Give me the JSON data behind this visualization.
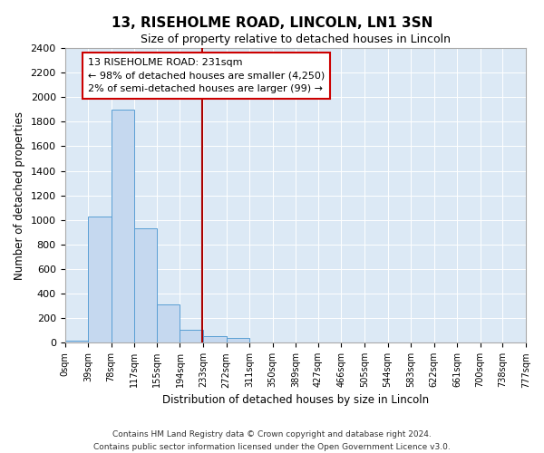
{
  "title": "13, RISEHOLME ROAD, LINCOLN, LN1 3SN",
  "subtitle": "Size of property relative to detached houses in Lincoln",
  "xlabel": "Distribution of detached houses by size in Lincoln",
  "ylabel": "Number of detached properties",
  "bin_edges": [
    0,
    39,
    78,
    117,
    155,
    194,
    233,
    272,
    311,
    350,
    389,
    427,
    466,
    505,
    544,
    583,
    622,
    661,
    700,
    738,
    777
  ],
  "bin_counts": [
    20,
    1025,
    1900,
    930,
    315,
    105,
    55,
    40,
    0,
    0,
    0,
    0,
    0,
    0,
    0,
    0,
    0,
    0,
    0,
    0
  ],
  "bar_color": "#c5d8ef",
  "bar_edge_color": "#5a9fd4",
  "property_size": 231,
  "vline_color": "#aa0000",
  "annotation_title": "13 RISEHOLME ROAD: 231sqm",
  "annotation_line1": "← 98% of detached houses are smaller (4,250)",
  "annotation_line2": "2% of semi-detached houses are larger (99) →",
  "annotation_box_edge": "#cc0000",
  "ylim": [
    0,
    2400
  ],
  "yticks": [
    0,
    200,
    400,
    600,
    800,
    1000,
    1200,
    1400,
    1600,
    1800,
    2000,
    2200,
    2400
  ],
  "tick_labels": [
    "0sqm",
    "39sqm",
    "78sqm",
    "117sqm",
    "155sqm",
    "194sqm",
    "233sqm",
    "272sqm",
    "311sqm",
    "350sqm",
    "389sqm",
    "427sqm",
    "466sqm",
    "505sqm",
    "544sqm",
    "583sqm",
    "622sqm",
    "661sqm",
    "700sqm",
    "738sqm",
    "777sqm"
  ],
  "footnote1": "Contains HM Land Registry data © Crown copyright and database right 2024.",
  "footnote2": "Contains public sector information licensed under the Open Government Licence v3.0.",
  "fig_bg_color": "#ffffff",
  "plot_bg_color": "#dce9f5"
}
